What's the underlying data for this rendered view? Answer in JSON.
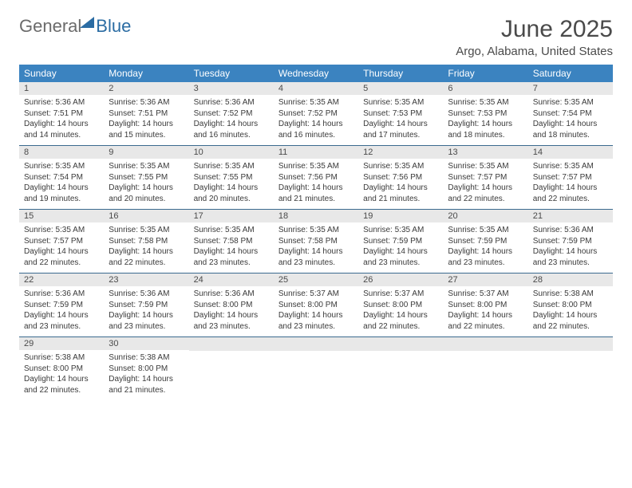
{
  "logo": {
    "text_general": "General",
    "text_blue": "Blue"
  },
  "header": {
    "month_title": "June 2025",
    "location": "Argo, Alabama, United States"
  },
  "weekdays": [
    "Sunday",
    "Monday",
    "Tuesday",
    "Wednesday",
    "Thursday",
    "Friday",
    "Saturday"
  ],
  "weeks": [
    [
      {
        "day": "1",
        "sunrise": "Sunrise: 5:36 AM",
        "sunset": "Sunset: 7:51 PM",
        "daylight1": "Daylight: 14 hours",
        "daylight2": "and 14 minutes."
      },
      {
        "day": "2",
        "sunrise": "Sunrise: 5:36 AM",
        "sunset": "Sunset: 7:51 PM",
        "daylight1": "Daylight: 14 hours",
        "daylight2": "and 15 minutes."
      },
      {
        "day": "3",
        "sunrise": "Sunrise: 5:36 AM",
        "sunset": "Sunset: 7:52 PM",
        "daylight1": "Daylight: 14 hours",
        "daylight2": "and 16 minutes."
      },
      {
        "day": "4",
        "sunrise": "Sunrise: 5:35 AM",
        "sunset": "Sunset: 7:52 PM",
        "daylight1": "Daylight: 14 hours",
        "daylight2": "and 16 minutes."
      },
      {
        "day": "5",
        "sunrise": "Sunrise: 5:35 AM",
        "sunset": "Sunset: 7:53 PM",
        "daylight1": "Daylight: 14 hours",
        "daylight2": "and 17 minutes."
      },
      {
        "day": "6",
        "sunrise": "Sunrise: 5:35 AM",
        "sunset": "Sunset: 7:53 PM",
        "daylight1": "Daylight: 14 hours",
        "daylight2": "and 18 minutes."
      },
      {
        "day": "7",
        "sunrise": "Sunrise: 5:35 AM",
        "sunset": "Sunset: 7:54 PM",
        "daylight1": "Daylight: 14 hours",
        "daylight2": "and 18 minutes."
      }
    ],
    [
      {
        "day": "8",
        "sunrise": "Sunrise: 5:35 AM",
        "sunset": "Sunset: 7:54 PM",
        "daylight1": "Daylight: 14 hours",
        "daylight2": "and 19 minutes."
      },
      {
        "day": "9",
        "sunrise": "Sunrise: 5:35 AM",
        "sunset": "Sunset: 7:55 PM",
        "daylight1": "Daylight: 14 hours",
        "daylight2": "and 20 minutes."
      },
      {
        "day": "10",
        "sunrise": "Sunrise: 5:35 AM",
        "sunset": "Sunset: 7:55 PM",
        "daylight1": "Daylight: 14 hours",
        "daylight2": "and 20 minutes."
      },
      {
        "day": "11",
        "sunrise": "Sunrise: 5:35 AM",
        "sunset": "Sunset: 7:56 PM",
        "daylight1": "Daylight: 14 hours",
        "daylight2": "and 21 minutes."
      },
      {
        "day": "12",
        "sunrise": "Sunrise: 5:35 AM",
        "sunset": "Sunset: 7:56 PM",
        "daylight1": "Daylight: 14 hours",
        "daylight2": "and 21 minutes."
      },
      {
        "day": "13",
        "sunrise": "Sunrise: 5:35 AM",
        "sunset": "Sunset: 7:57 PM",
        "daylight1": "Daylight: 14 hours",
        "daylight2": "and 22 minutes."
      },
      {
        "day": "14",
        "sunrise": "Sunrise: 5:35 AM",
        "sunset": "Sunset: 7:57 PM",
        "daylight1": "Daylight: 14 hours",
        "daylight2": "and 22 minutes."
      }
    ],
    [
      {
        "day": "15",
        "sunrise": "Sunrise: 5:35 AM",
        "sunset": "Sunset: 7:57 PM",
        "daylight1": "Daylight: 14 hours",
        "daylight2": "and 22 minutes."
      },
      {
        "day": "16",
        "sunrise": "Sunrise: 5:35 AM",
        "sunset": "Sunset: 7:58 PM",
        "daylight1": "Daylight: 14 hours",
        "daylight2": "and 22 minutes."
      },
      {
        "day": "17",
        "sunrise": "Sunrise: 5:35 AM",
        "sunset": "Sunset: 7:58 PM",
        "daylight1": "Daylight: 14 hours",
        "daylight2": "and 23 minutes."
      },
      {
        "day": "18",
        "sunrise": "Sunrise: 5:35 AM",
        "sunset": "Sunset: 7:58 PM",
        "daylight1": "Daylight: 14 hours",
        "daylight2": "and 23 minutes."
      },
      {
        "day": "19",
        "sunrise": "Sunrise: 5:35 AM",
        "sunset": "Sunset: 7:59 PM",
        "daylight1": "Daylight: 14 hours",
        "daylight2": "and 23 minutes."
      },
      {
        "day": "20",
        "sunrise": "Sunrise: 5:35 AM",
        "sunset": "Sunset: 7:59 PM",
        "daylight1": "Daylight: 14 hours",
        "daylight2": "and 23 minutes."
      },
      {
        "day": "21",
        "sunrise": "Sunrise: 5:36 AM",
        "sunset": "Sunset: 7:59 PM",
        "daylight1": "Daylight: 14 hours",
        "daylight2": "and 23 minutes."
      }
    ],
    [
      {
        "day": "22",
        "sunrise": "Sunrise: 5:36 AM",
        "sunset": "Sunset: 7:59 PM",
        "daylight1": "Daylight: 14 hours",
        "daylight2": "and 23 minutes."
      },
      {
        "day": "23",
        "sunrise": "Sunrise: 5:36 AM",
        "sunset": "Sunset: 7:59 PM",
        "daylight1": "Daylight: 14 hours",
        "daylight2": "and 23 minutes."
      },
      {
        "day": "24",
        "sunrise": "Sunrise: 5:36 AM",
        "sunset": "Sunset: 8:00 PM",
        "daylight1": "Daylight: 14 hours",
        "daylight2": "and 23 minutes."
      },
      {
        "day": "25",
        "sunrise": "Sunrise: 5:37 AM",
        "sunset": "Sunset: 8:00 PM",
        "daylight1": "Daylight: 14 hours",
        "daylight2": "and 23 minutes."
      },
      {
        "day": "26",
        "sunrise": "Sunrise: 5:37 AM",
        "sunset": "Sunset: 8:00 PM",
        "daylight1": "Daylight: 14 hours",
        "daylight2": "and 22 minutes."
      },
      {
        "day": "27",
        "sunrise": "Sunrise: 5:37 AM",
        "sunset": "Sunset: 8:00 PM",
        "daylight1": "Daylight: 14 hours",
        "daylight2": "and 22 minutes."
      },
      {
        "day": "28",
        "sunrise": "Sunrise: 5:38 AM",
        "sunset": "Sunset: 8:00 PM",
        "daylight1": "Daylight: 14 hours",
        "daylight2": "and 22 minutes."
      }
    ],
    [
      {
        "day": "29",
        "sunrise": "Sunrise: 5:38 AM",
        "sunset": "Sunset: 8:00 PM",
        "daylight1": "Daylight: 14 hours",
        "daylight2": "and 22 minutes."
      },
      {
        "day": "30",
        "sunrise": "Sunrise: 5:38 AM",
        "sunset": "Sunset: 8:00 PM",
        "daylight1": "Daylight: 14 hours",
        "daylight2": "and 21 minutes."
      },
      null,
      null,
      null,
      null,
      null
    ]
  ],
  "colors": {
    "header_bg": "#3b83c0",
    "header_text": "#ffffff",
    "day_number_bg": "#e8e8e8",
    "row_border": "#3b6a8f",
    "body_text": "#3a3a3a",
    "title_text": "#4a4a4a",
    "logo_gray": "#6b6b6b",
    "logo_blue": "#2b6ca3"
  }
}
